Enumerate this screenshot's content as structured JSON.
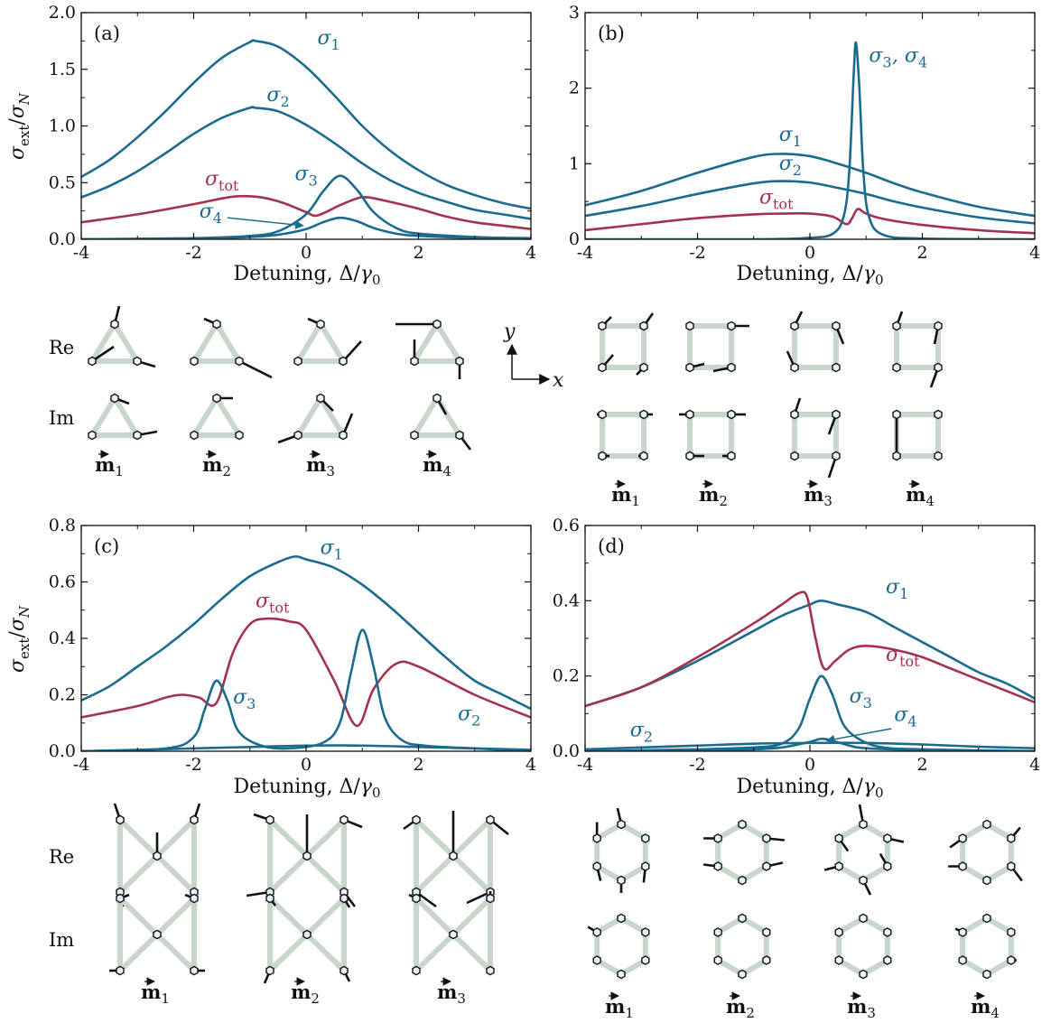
{
  "colors": {
    "blue": "#1a6b8e",
    "red": "#a3314f",
    "link": "#c8d6cc"
  },
  "x_axis_label": "Detuning, Δ/γ₀",
  "y_axis_label": "σext/σN",
  "row_labels": {
    "re": "Re",
    "im": "Im"
  },
  "axes_inset": {
    "x": "x",
    "y": "y"
  },
  "chart_data": [
    {
      "type": "line",
      "panel": "(a)",
      "xlim": [
        -4,
        4
      ],
      "ylim": [
        0,
        2.0
      ],
      "yticks": [
        "0.0",
        "0.5",
        "1.0",
        "1.5",
        "2.0"
      ],
      "xticks": [
        "-4",
        "-2",
        "0",
        "2",
        "4"
      ],
      "series": [
        {
          "name": "σ1",
          "color": "blue",
          "x": [
            -4,
            -3.5,
            -3,
            -2.5,
            -2,
            -1.5,
            -1,
            -0.9,
            -0.5,
            0,
            0.5,
            1,
            1.5,
            2,
            2.5,
            3,
            3.5,
            4
          ],
          "y": [
            0.55,
            0.7,
            0.9,
            1.13,
            1.38,
            1.6,
            1.74,
            1.75,
            1.7,
            1.52,
            1.27,
            1.0,
            0.78,
            0.61,
            0.48,
            0.39,
            0.32,
            0.27
          ]
        },
        {
          "name": "σ2",
          "color": "blue",
          "x": [
            -4,
            -3.5,
            -3,
            -2.5,
            -2,
            -1.5,
            -1,
            -0.9,
            -0.5,
            0,
            0.5,
            1,
            1.5,
            2,
            2.5,
            3,
            3.5,
            4
          ],
          "y": [
            0.37,
            0.47,
            0.6,
            0.76,
            0.93,
            1.07,
            1.16,
            1.16,
            1.13,
            1.01,
            0.85,
            0.67,
            0.52,
            0.41,
            0.33,
            0.26,
            0.22,
            0.18
          ]
        },
        {
          "name": "σtot",
          "color": "red",
          "x": [
            -4,
            -3,
            -2,
            -1.5,
            -1.2,
            -0.8,
            -0.4,
            0,
            0.2,
            0.6,
            0.9,
            1.1,
            1.5,
            2,
            2.5,
            3,
            3.5,
            4
          ],
          "y": [
            0.15,
            0.22,
            0.31,
            0.36,
            0.38,
            0.37,
            0.32,
            0.24,
            0.21,
            0.3,
            0.36,
            0.37,
            0.33,
            0.27,
            0.2,
            0.15,
            0.12,
            0.09
          ]
        },
        {
          "name": "σ3",
          "color": "blue",
          "x": [
            -4,
            -2,
            -1,
            -0.5,
            0,
            0.3,
            0.6,
            0.9,
            1.2,
            1.6,
            2,
            3,
            4
          ],
          "y": [
            0.0,
            0.01,
            0.03,
            0.07,
            0.22,
            0.42,
            0.56,
            0.44,
            0.24,
            0.1,
            0.05,
            0.02,
            0.01
          ]
        },
        {
          "name": "σ4",
          "color": "blue",
          "x": [
            -4,
            -2,
            -1,
            -0.5,
            0,
            0.3,
            0.6,
            0.9,
            1.2,
            1.6,
            2,
            3,
            4
          ],
          "y": [
            0.0,
            0.005,
            0.02,
            0.04,
            0.09,
            0.15,
            0.19,
            0.16,
            0.1,
            0.05,
            0.03,
            0.01,
            0.0
          ]
        }
      ],
      "labels": [
        {
          "text": "σ1",
          "x": 0.2,
          "y": 1.72,
          "color": "blue"
        },
        {
          "text": "σ2",
          "x": -0.7,
          "y": 1.22,
          "color": "blue"
        },
        {
          "text": "σtot",
          "x": -1.8,
          "y": 0.48,
          "color": "red"
        },
        {
          "text": "σ3",
          "x": -0.2,
          "y": 0.52,
          "color": "blue"
        },
        {
          "text": "σ4",
          "x": -1.9,
          "y": 0.19,
          "color": "blue"
        }
      ]
    },
    {
      "type": "line",
      "panel": "(b)",
      "xlim": [
        -4,
        4
      ],
      "ylim": [
        0,
        3
      ],
      "yticks": [
        "0",
        "1",
        "2",
        "3"
      ],
      "xticks": [
        "-4",
        "-2",
        "0",
        "2",
        "4"
      ],
      "series": [
        {
          "name": "σ1",
          "color": "blue",
          "x": [
            -4,
            -3,
            -2,
            -1,
            -0.5,
            0,
            0.5,
            1,
            1.5,
            2,
            3,
            4
          ],
          "y": [
            0.45,
            0.64,
            0.88,
            1.09,
            1.13,
            1.1,
            1.0,
            0.88,
            0.74,
            0.62,
            0.43,
            0.31
          ]
        },
        {
          "name": "σ2",
          "color": "blue",
          "x": [
            -4,
            -3,
            -2,
            -1,
            -0.5,
            0,
            0.5,
            1,
            1.5,
            2,
            3,
            4
          ],
          "y": [
            0.31,
            0.44,
            0.6,
            0.74,
            0.77,
            0.75,
            0.68,
            0.6,
            0.5,
            0.42,
            0.29,
            0.21
          ]
        },
        {
          "name": "σtot",
          "color": "red",
          "x": [
            -4,
            -3,
            -2,
            -1,
            -0.5,
            0,
            0.4,
            0.65,
            0.75,
            0.85,
            1.0,
            1.3,
            2,
            3,
            4
          ],
          "y": [
            0.12,
            0.2,
            0.28,
            0.33,
            0.34,
            0.34,
            0.3,
            0.2,
            0.28,
            0.4,
            0.34,
            0.27,
            0.19,
            0.12,
            0.08
          ]
        },
        {
          "name": "σ3,σ4",
          "color": "blue",
          "x": [
            -4,
            -1,
            0,
            0.4,
            0.6,
            0.7,
            0.78,
            0.82,
            0.88,
            0.95,
            1.05,
            1.3,
            2,
            4
          ],
          "y": [
            0.0,
            0.0,
            0.02,
            0.07,
            0.3,
            0.9,
            2.2,
            2.6,
            2.0,
            0.9,
            0.3,
            0.06,
            0.01,
            0.0
          ]
        }
      ],
      "labels": [
        {
          "text": "σ1",
          "x": -0.55,
          "y": 1.3,
          "color": "blue"
        },
        {
          "text": "σ2",
          "x": -0.55,
          "y": 0.92,
          "color": "blue"
        },
        {
          "text": "σtot",
          "x": -0.9,
          "y": 0.47,
          "color": "red"
        },
        {
          "text": "σ3, σ4",
          "x": 1.05,
          "y": 2.35,
          "color": "blue"
        }
      ]
    },
    {
      "type": "line",
      "panel": "(c)",
      "xlim": [
        -4,
        4
      ],
      "ylim": [
        0,
        0.8
      ],
      "yticks": [
        "0.0",
        "0.2",
        "0.4",
        "0.6",
        "0.8"
      ],
      "xticks": [
        "-4",
        "-2",
        "0",
        "2",
        "4"
      ],
      "series": [
        {
          "name": "σ1",
          "color": "blue",
          "x": [
            -4,
            -3.5,
            -3,
            -2.5,
            -2,
            -1.5,
            -1,
            -0.5,
            -0.2,
            0,
            0.5,
            1,
            1.5,
            2,
            2.5,
            3,
            3.5,
            4
          ],
          "y": [
            0.18,
            0.23,
            0.3,
            0.37,
            0.45,
            0.54,
            0.62,
            0.67,
            0.69,
            0.68,
            0.65,
            0.59,
            0.51,
            0.42,
            0.33,
            0.25,
            0.2,
            0.15
          ]
        },
        {
          "name": "σtot",
          "color": "red",
          "x": [
            -4,
            -3,
            -2.5,
            -2.2,
            -1.9,
            -1.6,
            -1.3,
            -1,
            -0.7,
            -0.3,
            0,
            0.5,
            0.9,
            1.2,
            1.6,
            2,
            3,
            4
          ],
          "y": [
            0.12,
            0.16,
            0.19,
            0.2,
            0.19,
            0.17,
            0.35,
            0.45,
            0.47,
            0.46,
            0.43,
            0.25,
            0.09,
            0.22,
            0.31,
            0.3,
            0.2,
            0.12
          ]
        },
        {
          "name": "σ3",
          "color": "blue",
          "x": [
            -4,
            -2.5,
            -2,
            -1.8,
            -1.6,
            -1.4,
            -1.2,
            -0.8,
            -0.3,
            0.3,
            0.6,
            0.8,
            1.0,
            1.2,
            1.4,
            1.7,
            2.1,
            3,
            4
          ],
          "y": [
            0.0,
            0.01,
            0.05,
            0.15,
            0.25,
            0.18,
            0.07,
            0.02,
            0.01,
            0.03,
            0.1,
            0.28,
            0.43,
            0.3,
            0.12,
            0.04,
            0.02,
            0.01,
            0.0
          ]
        },
        {
          "name": "σ2",
          "color": "blue",
          "x": [
            -4,
            -3,
            -2,
            -1,
            0,
            1,
            2,
            3,
            4
          ],
          "y": [
            0.0,
            0.005,
            0.01,
            0.015,
            0.02,
            0.02,
            0.015,
            0.01,
            0.005
          ]
        }
      ],
      "labels": [
        {
          "text": "σ1",
          "x": 0.25,
          "y": 0.7,
          "color": "blue"
        },
        {
          "text": "σtot",
          "x": -0.9,
          "y": 0.51,
          "color": "red"
        },
        {
          "text": "σ3",
          "x": -1.3,
          "y": 0.17,
          "color": "blue"
        },
        {
          "text": "σ2",
          "x": 2.7,
          "y": 0.11,
          "color": "blue"
        }
      ]
    },
    {
      "type": "line",
      "panel": "(d)",
      "xlim": [
        -4,
        4
      ],
      "ylim": [
        0,
        0.6
      ],
      "yticks": [
        "0.0",
        "0.2",
        "0.4",
        "0.6"
      ],
      "xticks": [
        "-4",
        "-2",
        "0",
        "2",
        "4"
      ],
      "series": [
        {
          "name": "σ1",
          "color": "blue",
          "x": [
            -4,
            -3,
            -2,
            -1,
            -0.5,
            0,
            0.2,
            0.5,
            1,
            1.5,
            2,
            2.5,
            3,
            3.5,
            4
          ],
          "y": [
            0.12,
            0.17,
            0.24,
            0.32,
            0.36,
            0.39,
            0.4,
            0.39,
            0.37,
            0.33,
            0.29,
            0.25,
            0.21,
            0.18,
            0.14
          ]
        },
        {
          "name": "σtot",
          "color": "red",
          "x": [
            -4,
            -3,
            -2,
            -1,
            -0.5,
            -0.2,
            -0.05,
            0.1,
            0.25,
            0.45,
            0.7,
            1,
            1.5,
            2,
            2.5,
            3,
            3.5,
            4
          ],
          "y": [
            0.12,
            0.17,
            0.25,
            0.34,
            0.39,
            0.42,
            0.41,
            0.3,
            0.22,
            0.24,
            0.27,
            0.28,
            0.27,
            0.25,
            0.22,
            0.19,
            0.16,
            0.13
          ]
        },
        {
          "name": "σ3",
          "color": "blue",
          "x": [
            -4,
            -2,
            -1,
            -0.5,
            -0.2,
            0,
            0.2,
            0.4,
            0.6,
            0.9,
            1.3,
            2,
            4
          ],
          "y": [
            0.0,
            0.005,
            0.01,
            0.02,
            0.06,
            0.14,
            0.2,
            0.15,
            0.07,
            0.03,
            0.01,
            0.005,
            0.0
          ]
        },
        {
          "name": "σ2",
          "color": "blue",
          "x": [
            -4,
            -3,
            -2,
            -1,
            0,
            1,
            2,
            3,
            4
          ],
          "y": [
            0.005,
            0.01,
            0.015,
            0.02,
            0.022,
            0.022,
            0.018,
            0.012,
            0.008
          ]
        },
        {
          "name": "σ4",
          "color": "blue",
          "x": [
            -4,
            -2,
            -1,
            -0.5,
            0,
            0.2,
            0.4,
            0.7,
            1,
            2,
            4
          ],
          "y": [
            0.0,
            0.002,
            0.005,
            0.01,
            0.025,
            0.033,
            0.028,
            0.015,
            0.008,
            0.003,
            0.0
          ]
        }
      ],
      "labels": [
        {
          "text": "σ1",
          "x": 1.35,
          "y": 0.42,
          "color": "blue"
        },
        {
          "text": "σtot",
          "x": 1.35,
          "y": 0.24,
          "color": "red"
        },
        {
          "text": "σ3",
          "x": 0.7,
          "y": 0.13,
          "color": "blue"
        },
        {
          "text": "σ4",
          "x": 1.5,
          "y": 0.08,
          "color": "blue"
        },
        {
          "text": "σ2",
          "x": -3.2,
          "y": 0.04,
          "color": "blue"
        }
      ]
    }
  ],
  "mode_labels": {
    "a": [
      "m1",
      "m2",
      "m3",
      "m4"
    ],
    "b": [
      "m1",
      "m2",
      "m3",
      "m4"
    ],
    "c": [
      "m1",
      "m2",
      "m3"
    ],
    "d": [
      "m1",
      "m2",
      "m3",
      "m4"
    ]
  }
}
